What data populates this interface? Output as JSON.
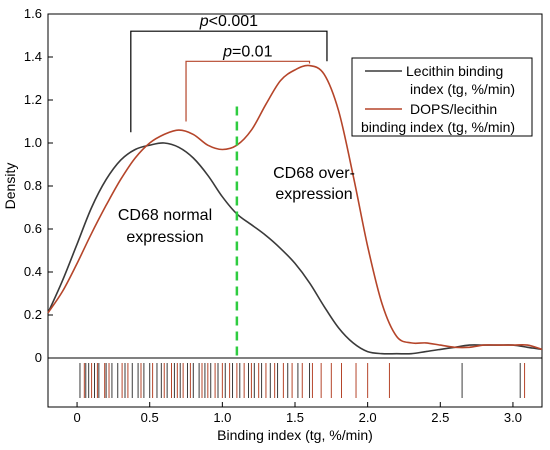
{
  "chart_data": {
    "type": "line",
    "xlabel": "Binding index (tg, %/min)",
    "ylabel": "Density",
    "xlim": [
      -0.2,
      3.2
    ],
    "ylim": [
      0,
      1.6
    ],
    "xticks": [
      "0",
      "0.5",
      "1.0",
      "1.5",
      "2.0",
      "2.5",
      "3.0"
    ],
    "yticks": [
      "0",
      "0.2",
      "0.4",
      "0.6",
      "0.8",
      "1.0",
      "1.2",
      "1.4",
      "1.6"
    ],
    "x": [
      -0.2,
      -0.1,
      0.0,
      0.1,
      0.2,
      0.3,
      0.4,
      0.5,
      0.6,
      0.7,
      0.8,
      0.9,
      1.0,
      1.1,
      1.2,
      1.3,
      1.4,
      1.5,
      1.6,
      1.7,
      1.8,
      1.9,
      2.0,
      2.1,
      2.2,
      2.3,
      2.4,
      2.5,
      2.6,
      2.7,
      2.8,
      2.9,
      3.0,
      3.1,
      3.2
    ],
    "series": [
      {
        "name": "Lecithin binding index (tg, %/min)",
        "color": "#3a3a3a",
        "values": [
          0.21,
          0.36,
          0.53,
          0.7,
          0.83,
          0.92,
          0.97,
          0.99,
          1.0,
          0.98,
          0.93,
          0.85,
          0.75,
          0.67,
          0.62,
          0.57,
          0.51,
          0.44,
          0.35,
          0.24,
          0.14,
          0.07,
          0.03,
          0.02,
          0.02,
          0.02,
          0.03,
          0.04,
          0.05,
          0.06,
          0.06,
          0.06,
          0.06,
          0.05,
          0.04
        ]
      },
      {
        "name": "DOPS/lecithin binding index (tg, %/min)",
        "color": "#b5452a",
        "values": [
          0.21,
          0.31,
          0.44,
          0.58,
          0.71,
          0.83,
          0.93,
          1.0,
          1.04,
          1.06,
          1.04,
          0.99,
          0.97,
          0.99,
          1.06,
          1.18,
          1.29,
          1.34,
          1.36,
          1.32,
          1.15,
          0.85,
          0.52,
          0.25,
          0.1,
          0.07,
          0.07,
          0.06,
          0.05,
          0.05,
          0.06,
          0.06,
          0.06,
          0.06,
          0.04
        ]
      }
    ],
    "cutoff": {
      "x": 1.1,
      "color": "#2ecc40"
    },
    "annotations": {
      "normal": [
        "CD68 normal",
        "expression"
      ],
      "over": [
        "CD68 over-",
        "expression"
      ],
      "sig1": {
        "p": "p",
        "rest": "<0.001",
        "x1": 0.37,
        "x2": 1.72,
        "y": 1.52,
        "drop1": 1.05,
        "drop2": 1.38
      },
      "sig2": {
        "p": "p",
        "rest": "=0.01",
        "x1": 0.75,
        "x2": 1.6,
        "y": 1.38,
        "drop1": 1.1,
        "drop2": 1.37
      }
    },
    "rug_lecithin": [
      0.02,
      0.06,
      0.08,
      0.12,
      0.15,
      0.2,
      0.24,
      0.28,
      0.33,
      0.38,
      0.42,
      0.46,
      0.5,
      0.55,
      0.58,
      0.62,
      0.67,
      0.71,
      0.76,
      0.8,
      0.84,
      0.88,
      0.92,
      0.97,
      1.02,
      1.07,
      1.12,
      1.18,
      1.22,
      1.27,
      1.33,
      1.38,
      1.45,
      1.52,
      1.6,
      2.65,
      3.05
    ],
    "rug_dops": [
      0.05,
      0.1,
      0.14,
      0.19,
      0.22,
      0.31,
      0.35,
      0.44,
      0.52,
      0.6,
      0.65,
      0.69,
      0.73,
      0.78,
      0.86,
      0.9,
      0.95,
      1.0,
      1.05,
      1.1,
      1.15,
      1.2,
      1.25,
      1.3,
      1.36,
      1.42,
      1.48,
      1.55,
      1.62,
      1.68,
      1.75,
      1.82,
      1.92,
      2.0,
      2.15,
      3.08
    ]
  },
  "legend": [
    {
      "lines": [
        "Lecithin binding",
        "index (tg, %/min)"
      ],
      "color": "#3a3a3a"
    },
    {
      "lines": [
        "DOPS/lecithin",
        "binding index (tg, %/min)"
      ],
      "color": "#b5452a"
    }
  ]
}
